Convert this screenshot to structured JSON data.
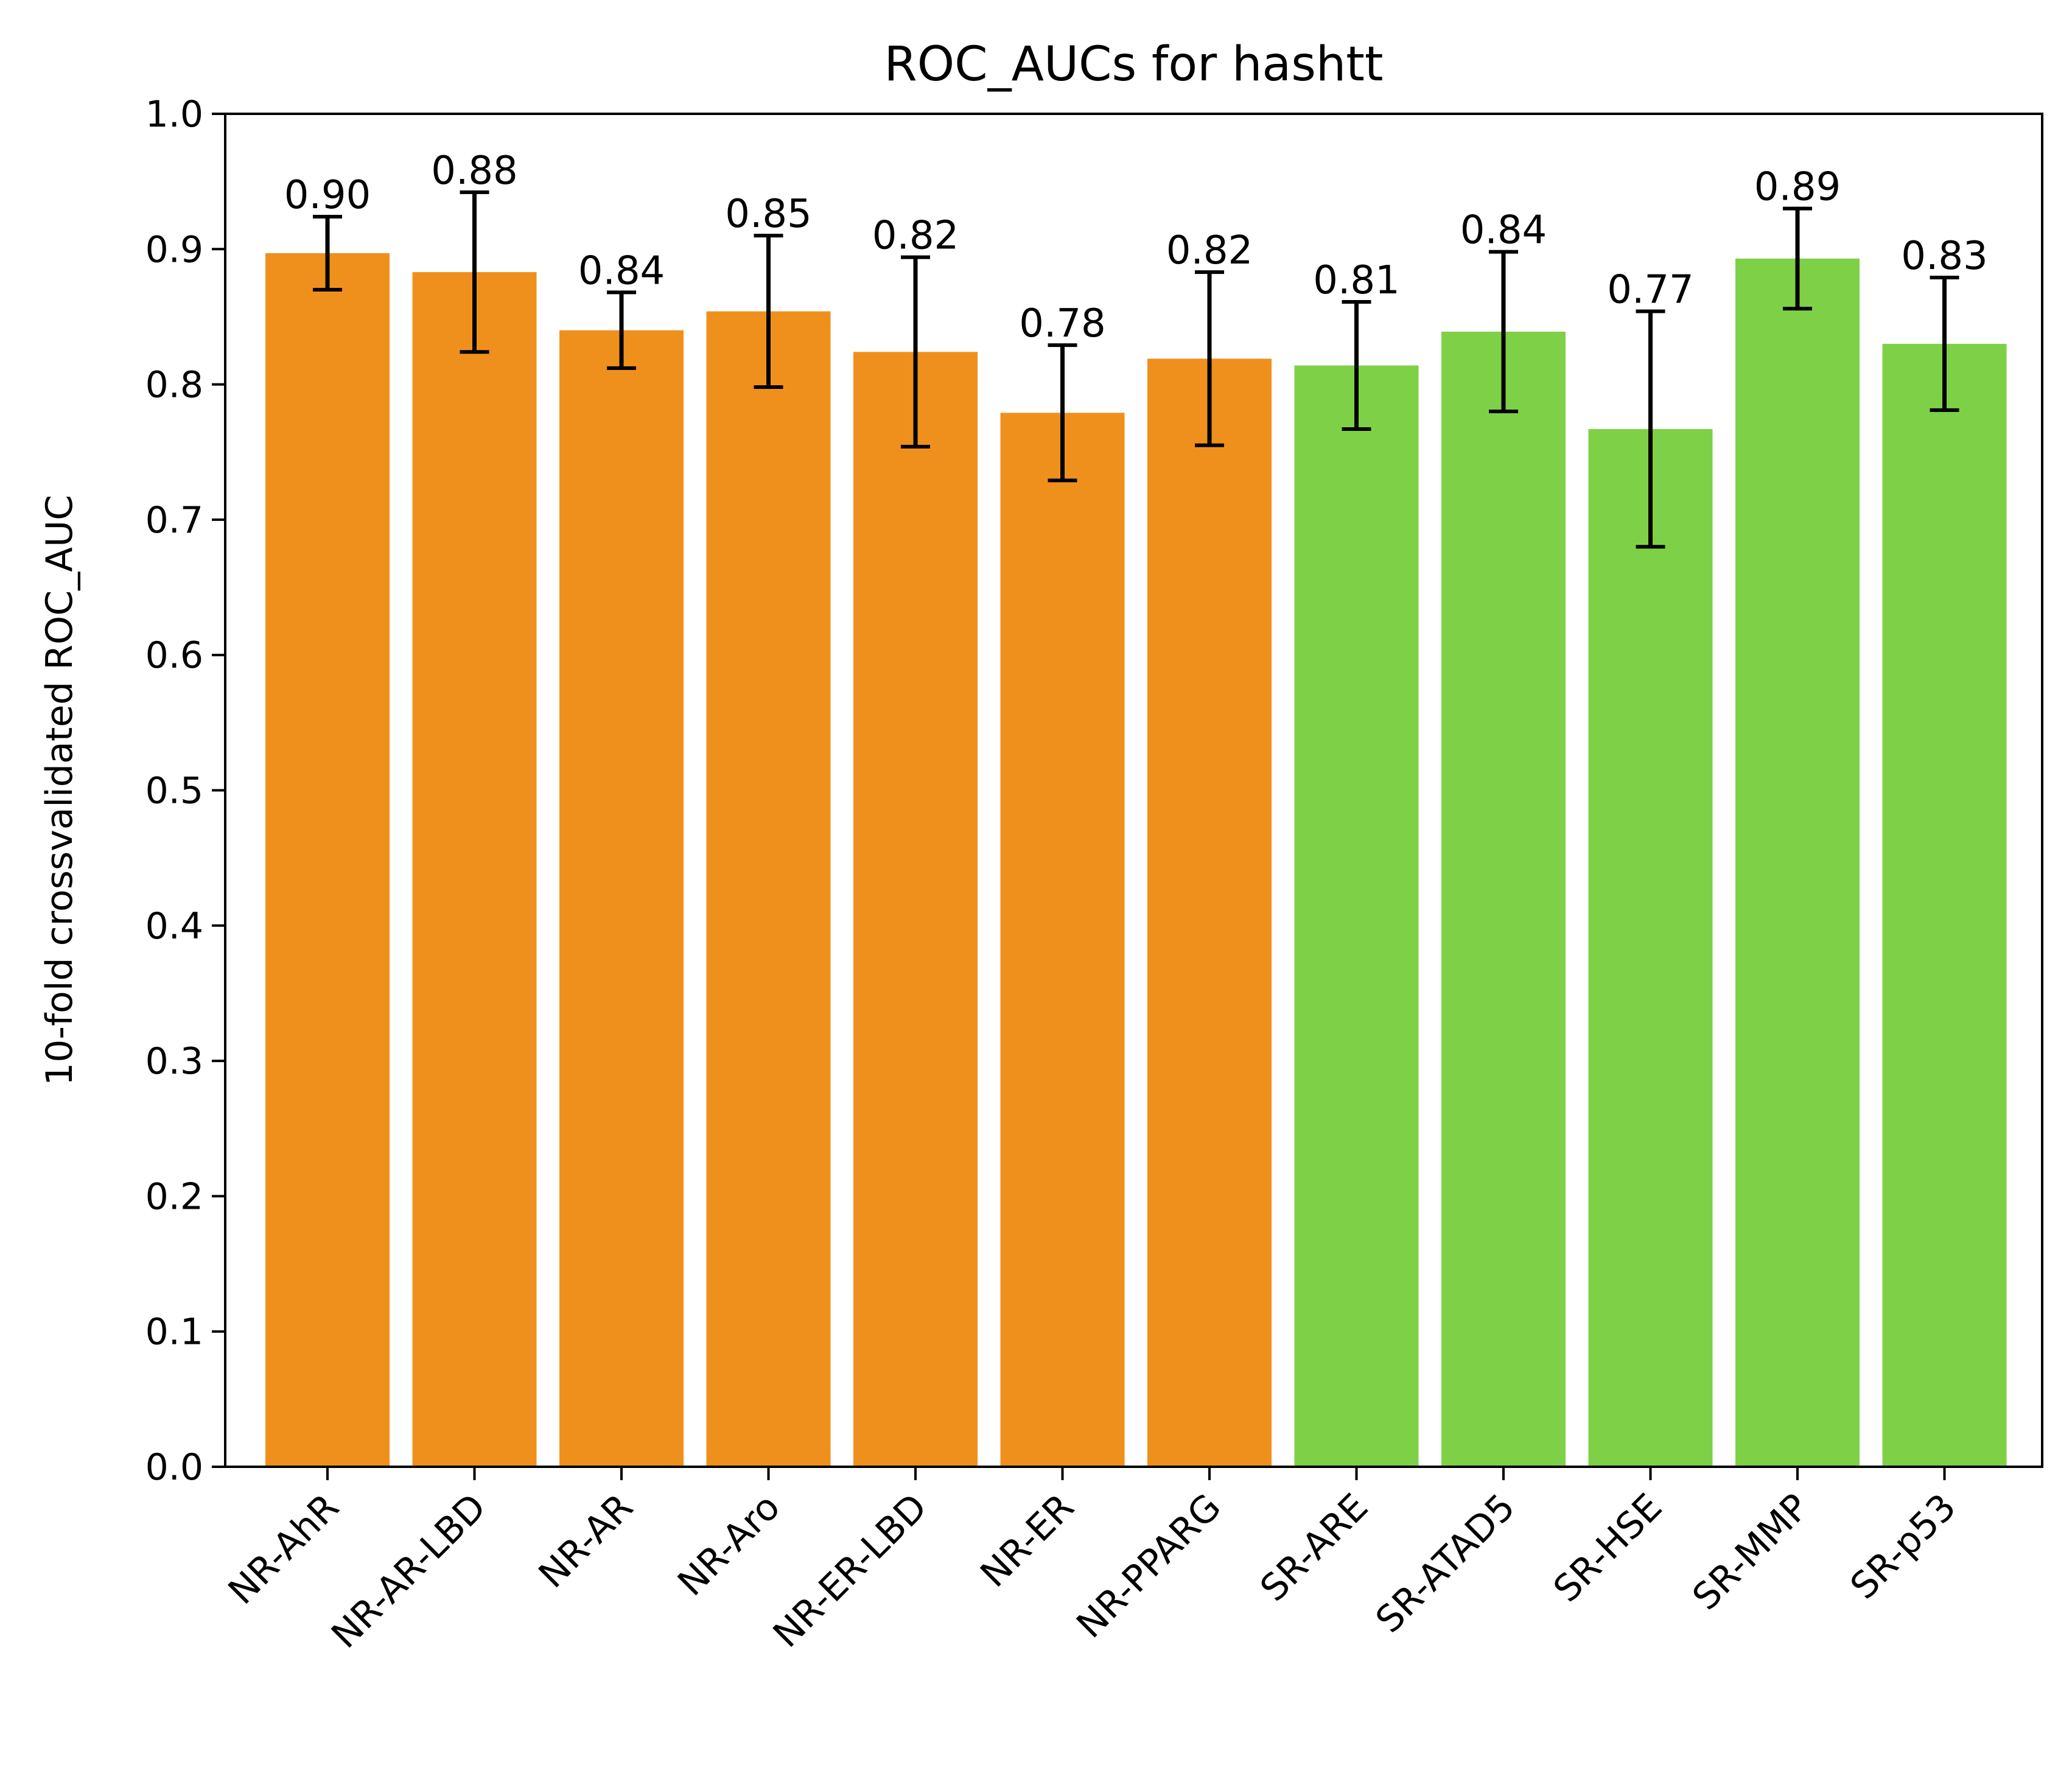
{
  "chart_data": {
    "type": "bar",
    "title": "ROC_AUCs for hashtt",
    "xlabel": "",
    "ylabel": "10-fold crossvalidated ROC_AUC",
    "ylim": [
      0.0,
      1.0
    ],
    "yticks": [
      "0.0",
      "0.1",
      "0.2",
      "0.3",
      "0.4",
      "0.5",
      "0.6",
      "0.7",
      "0.8",
      "0.9",
      "1.0"
    ],
    "categories": [
      "NR-AhR",
      "NR-AR-LBD",
      "NR-AR",
      "NR-Aro",
      "NR-ER-LBD",
      "NR-ER",
      "NR-PPARG",
      "SR-ARE",
      "SR-ATAD5",
      "SR-HSE",
      "SR-MMP",
      "SR-p53"
    ],
    "values": [
      0.897,
      0.883,
      0.84,
      0.854,
      0.824,
      0.779,
      0.819,
      0.814,
      0.839,
      0.767,
      0.893,
      0.83
    ],
    "errors": [
      0.027,
      0.059,
      0.028,
      0.056,
      0.07,
      0.05,
      0.064,
      0.047,
      0.059,
      0.087,
      0.037,
      0.049
    ],
    "value_labels": [
      "0.90",
      "0.88",
      "0.84",
      "0.85",
      "0.82",
      "0.78",
      "0.82",
      "0.81",
      "0.84",
      "0.77",
      "0.89",
      "0.83"
    ],
    "bar_colors": [
      "#f0901c",
      "#f0901c",
      "#f0901c",
      "#f0901c",
      "#f0901c",
      "#f0901c",
      "#f0901c",
      "#7ed147",
      "#7ed147",
      "#7ed147",
      "#7ed147",
      "#7ed147"
    ],
    "grid": false,
    "legend": "none"
  }
}
